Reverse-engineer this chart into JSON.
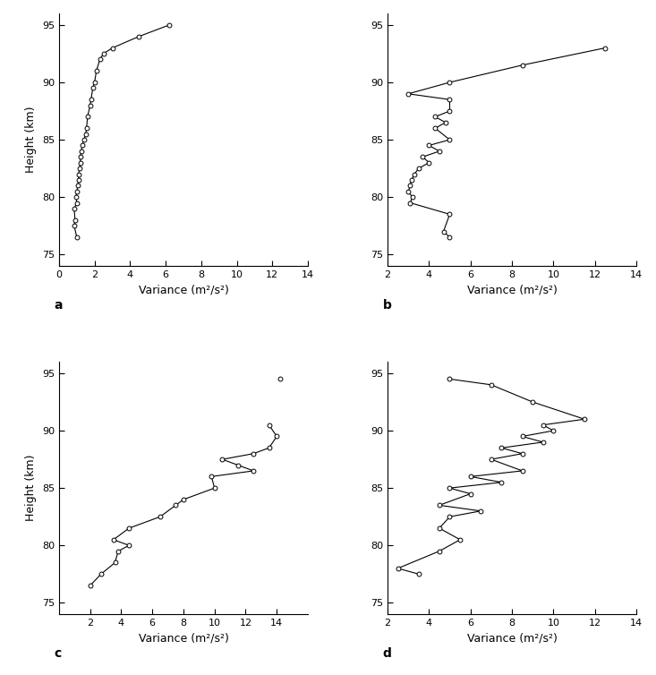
{
  "panel_a": {
    "label": "a",
    "height": [
      76.5,
      77.5,
      78.0,
      79.0,
      79.5,
      80.0,
      80.5,
      81.0,
      81.5,
      82.0,
      82.5,
      83.0,
      83.5,
      84.0,
      84.5,
      85.0,
      85.5,
      86.0,
      87.0,
      88.0,
      88.5,
      89.5,
      90.0,
      91.0,
      92.0,
      92.5,
      93.0,
      94.0,
      95.0
    ],
    "variance": [
      1.0,
      0.85,
      0.9,
      0.85,
      1.0,
      0.95,
      1.0,
      1.05,
      1.1,
      1.1,
      1.15,
      1.2,
      1.2,
      1.25,
      1.3,
      1.4,
      1.5,
      1.55,
      1.6,
      1.75,
      1.8,
      1.9,
      2.0,
      2.1,
      2.3,
      2.5,
      3.0,
      4.5,
      6.2
    ],
    "xlim": [
      0,
      14
    ],
    "xticks": [
      0,
      2,
      4,
      6,
      8,
      10,
      12,
      14
    ],
    "xlabel": "Variance (m²/s²)",
    "ylim": [
      74,
      96
    ],
    "yticks": [
      75,
      80,
      85,
      90,
      95
    ]
  },
  "panel_b": {
    "label": "b",
    "height": [
      76.5,
      77.0,
      78.5,
      79.5,
      80.0,
      80.5,
      81.0,
      81.5,
      82.0,
      82.5,
      83.0,
      83.5,
      84.0,
      84.5,
      85.0,
      86.0,
      86.5,
      87.0,
      87.5,
      88.5,
      89.0,
      90.0,
      91.5,
      93.0
    ],
    "variance": [
      5.0,
      4.7,
      5.0,
      3.1,
      3.2,
      3.0,
      3.1,
      3.15,
      3.3,
      3.5,
      4.0,
      3.7,
      4.5,
      4.0,
      5.0,
      4.3,
      4.8,
      4.3,
      5.0,
      5.0,
      3.0,
      5.0,
      8.5,
      12.5
    ],
    "xlim": [
      2,
      14
    ],
    "xticks": [
      2,
      4,
      6,
      8,
      10,
      12,
      14
    ],
    "xlabel": "Variance (m²/s²)",
    "ylim": [
      74,
      96
    ],
    "yticks": [
      75,
      80,
      85,
      90,
      95
    ]
  },
  "panel_c": {
    "label": "c",
    "height": [
      76.5,
      77.5,
      78.5,
      79.5,
      80.0,
      80.5,
      81.5,
      82.5,
      83.5,
      84.0,
      85.0,
      86.0,
      86.5,
      87.0,
      87.5,
      88.0,
      88.5,
      89.5,
      90.5
    ],
    "variance": [
      2.0,
      2.7,
      3.6,
      3.8,
      4.5,
      3.5,
      4.5,
      6.5,
      7.5,
      8.0,
      10.0,
      9.8,
      12.5,
      11.5,
      10.5,
      12.5,
      13.5,
      14.0,
      13.5
    ],
    "isolated_x": 14.2,
    "isolated_y": 94.5,
    "xlim": [
      0,
      16
    ],
    "xticks": [
      2,
      4,
      6,
      8,
      10,
      12,
      14
    ],
    "xlabel": "Variance (m²/s²)",
    "ylim": [
      74,
      96
    ],
    "yticks": [
      75,
      80,
      85,
      90,
      95
    ]
  },
  "panel_d": {
    "label": "d",
    "height": [
      77.5,
      78.0,
      79.5,
      80.5,
      81.5,
      82.5,
      83.0,
      83.5,
      84.5,
      85.0,
      85.5,
      86.0,
      86.5,
      87.5,
      88.0,
      88.5,
      89.0,
      89.5,
      90.0,
      90.5,
      91.0,
      92.5,
      94.0,
      94.5
    ],
    "variance": [
      3.5,
      2.5,
      4.5,
      5.5,
      4.5,
      5.0,
      6.5,
      4.5,
      6.0,
      5.0,
      7.5,
      6.0,
      8.5,
      7.0,
      8.5,
      7.5,
      9.5,
      8.5,
      10.0,
      9.5,
      11.5,
      9.0,
      7.0,
      5.0
    ],
    "xlim": [
      2,
      14
    ],
    "xticks": [
      2,
      4,
      6,
      8,
      10,
      12,
      14
    ],
    "xlabel": "Variance (m²/s²)",
    "ylim": [
      74,
      96
    ],
    "yticks": [
      75,
      80,
      85,
      90,
      95
    ]
  },
  "ylabel": "Height (km)",
  "line_color": "black",
  "marker": "o",
  "markersize": 3.5,
  "linewidth": 0.8,
  "markerfacecolor": "white",
  "markeredgecolor": "black",
  "markeredgewidth": 0.7,
  "background_color": "white",
  "tick_labelsize": 8,
  "xlabel_fontsize": 9,
  "ylabel_fontsize": 9,
  "label_fontsize": 10
}
